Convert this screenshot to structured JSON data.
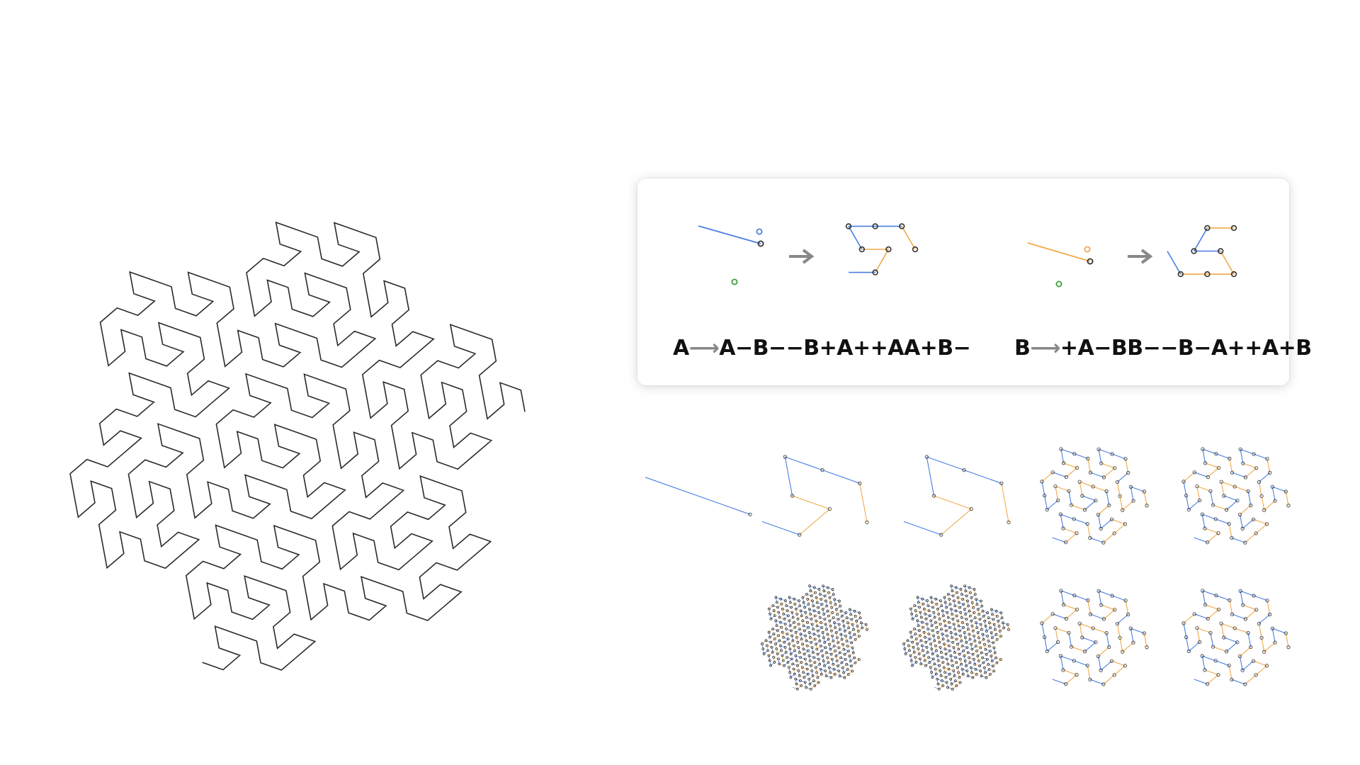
{
  "diagram": {
    "rules": [
      {
        "symbol": "A",
        "arrow": "⟶",
        "replacement": "A−B−−B+A++AA+B−",
        "line_color": "#4a7fe0"
      },
      {
        "symbol": "B",
        "arrow": "⟶",
        "replacement": "+A−BB−−B−A++A+B",
        "line_color": "#f0a94a"
      }
    ],
    "colors": {
      "curve": "#2a2a2a",
      "a_segment": "#4a7fe0",
      "b_segment": "#f0a94a",
      "vertex": "#333333",
      "origin": "#3aa03a",
      "card_arrow": "#888888"
    },
    "iterations": {
      "count": 9
    }
  }
}
